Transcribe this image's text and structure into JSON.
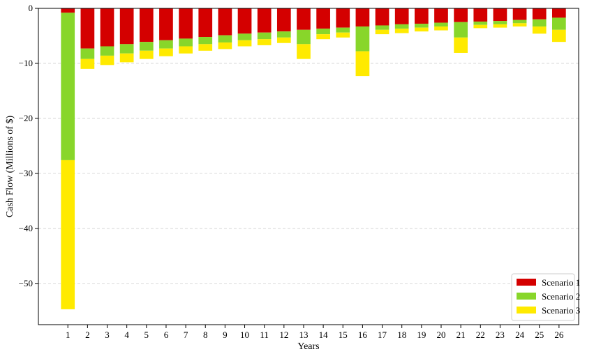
{
  "chart_data": {
    "type": "bar",
    "stacked": true,
    "title": "",
    "xlabel": "Years",
    "ylabel": "Cash Flow (Millions of $)",
    "categories": [
      "1",
      "2",
      "3",
      "4",
      "5",
      "6",
      "7",
      "8",
      "9",
      "10",
      "11",
      "12",
      "13",
      "14",
      "15",
      "16",
      "17",
      "18",
      "19",
      "20",
      "21",
      "22",
      "23",
      "24",
      "25",
      "26"
    ],
    "ylim": [
      -57.5,
      0
    ],
    "yticks": [
      0,
      -10,
      -20,
      -30,
      -40,
      -50
    ],
    "ytick_labels": [
      "0",
      "−10",
      "−20",
      "−30",
      "−40",
      "−50"
    ],
    "grid": "y-dashed",
    "legend_position": "bottom-right",
    "series": [
      {
        "name": "Scenario 1",
        "color": "#d40000",
        "values": [
          -0.8,
          -7.3,
          -6.9,
          -6.5,
          -6.1,
          -5.8,
          -5.5,
          -5.2,
          -4.9,
          -4.6,
          -4.4,
          -4.2,
          -3.9,
          -3.7,
          -3.5,
          -3.3,
          -3.1,
          -2.9,
          -2.8,
          -2.6,
          -2.5,
          -2.4,
          -2.3,
          -2.1,
          -2.0,
          -1.7
        ]
      },
      {
        "name": "Scenario 2",
        "color": "#88d62a",
        "values": [
          -26.8,
          -1.9,
          -1.7,
          -1.7,
          -1.6,
          -1.5,
          -1.4,
          -1.3,
          -1.3,
          -1.2,
          -1.2,
          -1.1,
          -2.6,
          -1.0,
          -0.9,
          -4.5,
          -0.8,
          -0.8,
          -0.7,
          -0.7,
          -2.8,
          -0.6,
          -0.6,
          -0.6,
          -1.3,
          -2.2
        ]
      },
      {
        "name": "Scenario 3",
        "color": "#ffea00",
        "values": [
          -27.1,
          -1.8,
          -1.7,
          -1.6,
          -1.5,
          -1.4,
          -1.3,
          -1.2,
          -1.2,
          -1.1,
          -1.1,
          -1.0,
          -2.7,
          -0.9,
          -0.9,
          -4.5,
          -0.8,
          -0.8,
          -0.7,
          -0.7,
          -2.8,
          -0.6,
          -0.6,
          -0.6,
          -1.3,
          -2.2
        ]
      }
    ]
  }
}
